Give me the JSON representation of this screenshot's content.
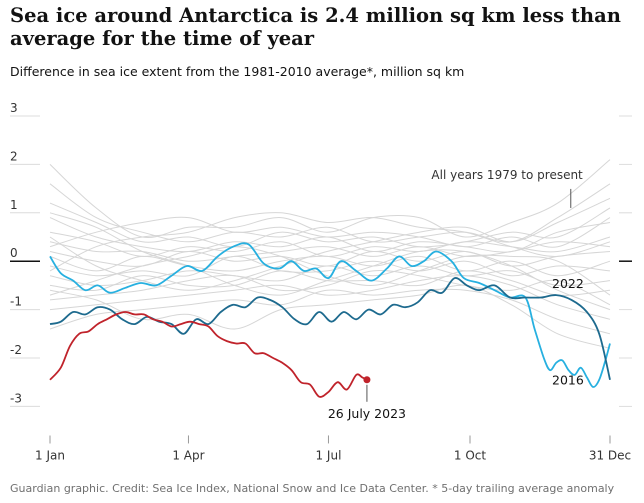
{
  "header": {
    "title": "Sea ice around Antarctica is 2.4 million sq km less than average for the time of year",
    "subtitle": "Difference in sea ice extent from the 1981-2010 average*, million sq km"
  },
  "footer": {
    "credit": "Guardian graphic. Credit: Sea Ice Index, National Snow and Ice Data Center. * 5-day trailing average anomaly"
  },
  "colors": {
    "background_years": "#d6d6d6",
    "y2016": "#27b0e0",
    "y2022": "#1d6a8e",
    "y2023": "#c0232b",
    "grid": "#dcdcdc",
    "zero_line": "#121212",
    "text": "#121212"
  },
  "chart_data": {
    "type": "line",
    "title": "Sea ice around Antarctica is 2.4 million sq km less than average for the time of year",
    "subtitle": "Difference in sea ice extent from the 1981-2010 average*, million sq km",
    "xlabel": "",
    "ylabel": "",
    "x_unit": "day of year",
    "xlim": [
      1,
      365
    ],
    "ylim": [
      -3.3,
      3.1
    ],
    "y_ticks": [
      3,
      2,
      1,
      0,
      -1,
      -2,
      -3
    ],
    "y_tick_labels": [
      "3",
      "2",
      "1",
      "0",
      "-1",
      "-2",
      "-3"
    ],
    "x_ticks": [
      {
        "day": 1,
        "label": "1 Jan"
      },
      {
        "day": 91,
        "label": "1 Apr"
      },
      {
        "day": 182,
        "label": "1 Jul"
      },
      {
        "day": 274,
        "label": "1 Oct"
      },
      {
        "day": 365,
        "label": "31 Dec"
      }
    ],
    "grid": true,
    "legend": "none (direct labels)",
    "annotations": [
      {
        "text": "All years 1979 to present",
        "x": 320,
        "y": 1.7
      },
      {
        "text": "2022",
        "x": 322,
        "y": -0.55
      },
      {
        "text": "2016",
        "x": 322,
        "y": -2.55
      },
      {
        "text": "26 July 2023",
        "x": 207,
        "y": -3.2
      }
    ],
    "background_series_label": "All years 1979 to present",
    "background_series": [
      {
        "x": [
          1,
          31,
          61,
          91,
          121,
          151,
          181,
          211,
          241,
          271,
          301,
          331,
          365
        ],
        "y": [
          2.0,
          1.1,
          0.5,
          0.7,
          0.7,
          0.9,
          0.6,
          0.9,
          0.9,
          0.5,
          0.8,
          1.2,
          2.1
        ]
      },
      {
        "x": [
          1,
          31,
          61,
          91,
          121,
          151,
          181,
          211,
          241,
          271,
          301,
          331,
          365
        ],
        "y": [
          1.6,
          0.9,
          0.6,
          0.4,
          0.6,
          0.5,
          0.7,
          0.4,
          0.5,
          0.6,
          0.4,
          0.9,
          1.6
        ]
      },
      {
        "x": [
          1,
          31,
          61,
          91,
          121,
          151,
          181,
          211,
          241,
          271,
          301,
          331,
          365
        ],
        "y": [
          1.2,
          0.8,
          0.4,
          0.5,
          0.3,
          0.6,
          0.4,
          0.5,
          0.3,
          0.4,
          0.6,
          0.5,
          1.1
        ]
      },
      {
        "x": [
          1,
          31,
          61,
          91,
          121,
          151,
          181,
          211,
          241,
          271,
          301,
          331,
          365
        ],
        "y": [
          0.9,
          0.5,
          0.3,
          0.2,
          0.4,
          0.3,
          0.5,
          0.2,
          0.4,
          0.3,
          0.2,
          0.6,
          0.8
        ]
      },
      {
        "x": [
          1,
          31,
          61,
          91,
          121,
          151,
          181,
          211,
          241,
          271,
          301,
          331,
          365
        ],
        "y": [
          0.6,
          0.4,
          0.1,
          0.3,
          0.2,
          0.4,
          0.1,
          0.3,
          0.2,
          0.4,
          0.3,
          0.2,
          0.5
        ]
      },
      {
        "x": [
          1,
          31,
          61,
          91,
          121,
          151,
          181,
          211,
          241,
          271,
          301,
          331,
          365
        ],
        "y": [
          0.4,
          0.2,
          0.2,
          0.0,
          0.1,
          0.2,
          0.3,
          0.1,
          0.3,
          0.1,
          0.2,
          0.4,
          0.3
        ]
      },
      {
        "x": [
          1,
          31,
          61,
          91,
          121,
          151,
          181,
          211,
          241,
          271,
          301,
          331,
          365
        ],
        "y": [
          0.2,
          0.0,
          -0.1,
          0.2,
          0.0,
          0.1,
          -0.1,
          0.2,
          0.0,
          0.2,
          -0.1,
          0.1,
          0.2
        ]
      },
      {
        "x": [
          1,
          31,
          61,
          91,
          121,
          151,
          181,
          211,
          241,
          271,
          301,
          331,
          365
        ],
        "y": [
          0.1,
          -0.2,
          0.1,
          -0.1,
          -0.2,
          0.0,
          0.1,
          -0.1,
          0.1,
          -0.2,
          0.0,
          -0.3,
          0.0
        ]
      },
      {
        "x": [
          1,
          31,
          61,
          91,
          121,
          151,
          181,
          211,
          241,
          271,
          301,
          331,
          365
        ],
        "y": [
          -0.1,
          -0.3,
          -0.2,
          -0.3,
          0.1,
          -0.2,
          -0.2,
          0.0,
          -0.2,
          0.0,
          -0.3,
          -0.1,
          -0.2
        ]
      },
      {
        "x": [
          1,
          31,
          61,
          91,
          121,
          151,
          181,
          211,
          241,
          271,
          301,
          331,
          365
        ],
        "y": [
          -0.3,
          -0.5,
          -0.4,
          -0.2,
          -0.3,
          -0.4,
          -0.1,
          -0.3,
          -0.1,
          -0.3,
          -0.2,
          -0.5,
          -0.4
        ]
      },
      {
        "x": [
          1,
          31,
          61,
          91,
          121,
          151,
          181,
          211,
          241,
          271,
          301,
          331,
          365
        ],
        "y": [
          -0.5,
          -0.6,
          -0.3,
          -0.5,
          -0.5,
          -0.2,
          -0.4,
          -0.4,
          -0.5,
          -0.2,
          -0.4,
          -0.7,
          -0.6
        ]
      },
      {
        "x": [
          1,
          31,
          61,
          91,
          121,
          151,
          181,
          211,
          241,
          271,
          301,
          331,
          365
        ],
        "y": [
          -0.8,
          -0.7,
          -0.6,
          -0.4,
          -0.3,
          -0.6,
          -0.5,
          -0.2,
          -0.3,
          -0.5,
          -0.6,
          -0.4,
          -0.9
        ]
      },
      {
        "x": [
          1,
          31,
          61,
          91,
          121,
          151,
          181,
          211,
          241,
          271,
          301,
          331,
          365
        ],
        "y": [
          -1.0,
          -0.9,
          -0.8,
          -0.7,
          -0.6,
          -0.5,
          -0.7,
          -0.6,
          -0.4,
          -0.3,
          -0.5,
          -0.9,
          -1.2
        ]
      },
      {
        "x": [
          1,
          31,
          61,
          91,
          121,
          151,
          181,
          211,
          241,
          271,
          301,
          331,
          365
        ],
        "y": [
          -1.4,
          -1.1,
          -1.0,
          -0.9,
          -0.8,
          -0.9,
          -0.6,
          -0.7,
          -0.6,
          -0.6,
          -0.8,
          -1.2,
          -1.5
        ]
      },
      {
        "x": [
          1,
          31,
          61,
          91,
          121,
          151,
          181,
          211,
          241,
          271,
          301,
          331,
          365
        ],
        "y": [
          -0.6,
          -0.8,
          -1.2,
          -1.1,
          -1.4,
          -1.0,
          -0.9,
          -0.8,
          -0.7,
          -0.5,
          -0.9,
          -1.5,
          -1.8
        ]
      },
      {
        "x": [
          1,
          31,
          61,
          91,
          121,
          151,
          181,
          211,
          241,
          271,
          301,
          331,
          365
        ],
        "y": [
          0.3,
          0.6,
          0.8,
          0.9,
          0.6,
          0.7,
          0.5,
          0.6,
          0.5,
          0.3,
          0.5,
          0.3,
          0.9
        ]
      },
      {
        "x": [
          1,
          31,
          61,
          91,
          121,
          151,
          181,
          211,
          241,
          271,
          301,
          331,
          365
        ],
        "y": [
          -0.2,
          0.3,
          0.5,
          0.6,
          0.9,
          1.0,
          0.8,
          0.9,
          0.7,
          0.6,
          0.3,
          0.1,
          0.4
        ]
      },
      {
        "x": [
          1,
          31,
          61,
          91,
          121,
          151,
          181,
          211,
          241,
          271,
          301,
          331,
          365
        ],
        "y": [
          0.5,
          -0.1,
          -0.4,
          -0.6,
          -0.4,
          -0.1,
          0.2,
          0.4,
          0.6,
          0.7,
          0.4,
          0.8,
          1.3
        ]
      },
      {
        "x": [
          1,
          31,
          61,
          91,
          121,
          151,
          181,
          211,
          241,
          271,
          301,
          331,
          365
        ],
        "y": [
          -0.7,
          -0.4,
          -0.1,
          0.1,
          0.3,
          0.1,
          -0.3,
          -0.5,
          -0.2,
          0.1,
          0.1,
          0.0,
          -0.7
        ]
      },
      {
        "x": [
          1,
          31,
          61,
          91,
          121,
          151,
          181,
          211,
          241,
          271,
          301,
          331,
          365
        ],
        "y": [
          1.0,
          0.7,
          0.2,
          -0.1,
          -0.5,
          -0.7,
          -0.4,
          -0.1,
          0.2,
          0.2,
          -0.1,
          -0.6,
          -1.0
        ]
      }
    ],
    "series": [
      {
        "name": "2016",
        "color": "#27b0e0",
        "x": [
          1,
          8,
          16,
          24,
          32,
          40,
          50,
          60,
          70,
          80,
          90,
          100,
          110,
          120,
          130,
          140,
          150,
          158,
          166,
          174,
          182,
          190,
          200,
          210,
          220,
          228,
          236,
          244,
          252,
          262,
          270,
          280,
          290,
          300,
          310,
          316,
          322,
          326,
          330,
          334,
          338,
          342,
          346,
          350,
          354,
          358,
          362,
          365
        ],
        "y": [
          0.1,
          -0.25,
          -0.4,
          -0.6,
          -0.5,
          -0.65,
          -0.55,
          -0.45,
          -0.5,
          -0.3,
          -0.1,
          -0.2,
          0.1,
          0.3,
          0.35,
          -0.05,
          -0.15,
          0.0,
          -0.2,
          -0.15,
          -0.35,
          0.0,
          -0.2,
          -0.4,
          -0.15,
          0.1,
          -0.1,
          0.0,
          0.2,
          0.0,
          -0.35,
          -0.45,
          -0.6,
          -0.75,
          -0.75,
          -1.4,
          -2.0,
          -2.25,
          -2.1,
          -2.05,
          -2.25,
          -2.35,
          -2.2,
          -2.4,
          -2.6,
          -2.45,
          -2.05,
          -1.7
        ]
      },
      {
        "name": "2022",
        "color": "#1d6a8e",
        "x": [
          1,
          8,
          16,
          24,
          32,
          40,
          48,
          56,
          64,
          72,
          80,
          88,
          96,
          104,
          112,
          120,
          128,
          136,
          144,
          152,
          160,
          168,
          176,
          184,
          192,
          200,
          208,
          216,
          224,
          232,
          240,
          248,
          256,
          264,
          272,
          280,
          290,
          300,
          310,
          320,
          330,
          340,
          350,
          358,
          365
        ],
        "y": [
          -1.3,
          -1.25,
          -1.05,
          -1.1,
          -0.95,
          -1.0,
          -1.2,
          -1.3,
          -1.15,
          -1.25,
          -1.3,
          -1.5,
          -1.2,
          -1.3,
          -1.05,
          -0.9,
          -0.95,
          -0.75,
          -0.8,
          -0.95,
          -1.2,
          -1.3,
          -1.05,
          -1.25,
          -1.05,
          -1.2,
          -1.0,
          -1.1,
          -0.9,
          -0.95,
          -0.85,
          -0.6,
          -0.65,
          -0.35,
          -0.5,
          -0.6,
          -0.5,
          -0.75,
          -0.75,
          -0.75,
          -0.7,
          -0.8,
          -1.05,
          -1.5,
          -2.45
        ]
      },
      {
        "name": "2023",
        "color": "#c0232b",
        "x": [
          1,
          8,
          14,
          20,
          26,
          32,
          38,
          44,
          50,
          56,
          62,
          68,
          74,
          80,
          86,
          92,
          98,
          104,
          110,
          116,
          122,
          128,
          134,
          140,
          146,
          152,
          158,
          164,
          170,
          176,
          182,
          188,
          194,
          200,
          204,
          207
        ],
        "y": [
          -2.45,
          -2.2,
          -1.75,
          -1.5,
          -1.45,
          -1.3,
          -1.2,
          -1.1,
          -1.05,
          -1.1,
          -1.1,
          -1.2,
          -1.25,
          -1.35,
          -1.3,
          -1.25,
          -1.3,
          -1.35,
          -1.55,
          -1.65,
          -1.7,
          -1.7,
          -1.9,
          -1.9,
          -2.0,
          -2.1,
          -2.25,
          -2.5,
          -2.55,
          -2.8,
          -2.7,
          -2.5,
          -2.65,
          -2.35,
          -2.4,
          -2.45
        ]
      }
    ]
  }
}
